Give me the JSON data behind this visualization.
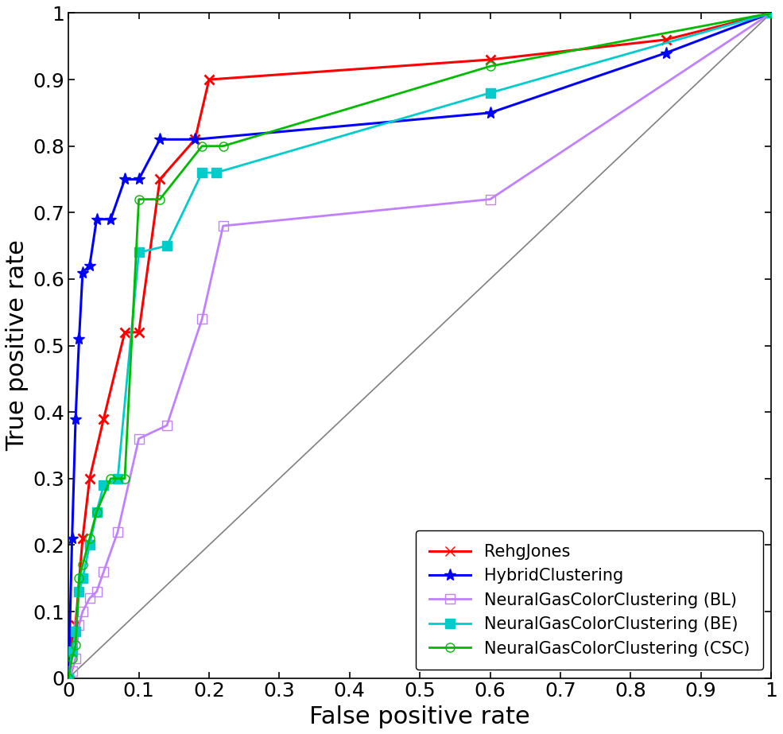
{
  "title": "",
  "xlabel": "False positive rate",
  "ylabel": "True positive rate",
  "xlim": [
    0,
    1
  ],
  "ylim": [
    0,
    1
  ],
  "diagonal_color": "#808080",
  "background_color": "#ffffff",
  "curves": {
    "RehgJones": {
      "x": [
        0.0,
        0.005,
        0.01,
        0.02,
        0.03,
        0.05,
        0.08,
        0.1,
        0.13,
        0.18,
        0.2,
        0.6,
        0.85,
        1.0
      ],
      "y": [
        0.0,
        0.06,
        0.08,
        0.21,
        0.3,
        0.39,
        0.52,
        0.52,
        0.75,
        0.81,
        0.9,
        0.93,
        0.96,
        1.0
      ],
      "color": "#ff0000",
      "marker": "x",
      "markersize": 9,
      "markeredgewidth": 2.0,
      "linewidth": 2.2,
      "label": "RehgJones"
    },
    "HybridClustering": {
      "x": [
        0.0,
        0.005,
        0.01,
        0.015,
        0.02,
        0.03,
        0.04,
        0.06,
        0.08,
        0.1,
        0.13,
        0.18,
        0.6,
        0.85,
        1.0
      ],
      "y": [
        0.0,
        0.21,
        0.39,
        0.51,
        0.61,
        0.62,
        0.69,
        0.69,
        0.75,
        0.75,
        0.81,
        0.81,
        0.85,
        0.94,
        1.0
      ],
      "color": "#0000ff",
      "marker": "*",
      "markersize": 11,
      "linewidth": 2.2,
      "label": "HybridClustering"
    },
    "NGCC_BL": {
      "x": [
        0.0,
        0.005,
        0.01,
        0.015,
        0.02,
        0.03,
        0.04,
        0.05,
        0.07,
        0.1,
        0.14,
        0.19,
        0.22,
        0.6,
        1.0
      ],
      "y": [
        0.0,
        0.01,
        0.03,
        0.08,
        0.1,
        0.12,
        0.13,
        0.16,
        0.22,
        0.36,
        0.38,
        0.54,
        0.68,
        0.72,
        1.0
      ],
      "color": "#c080ff",
      "marker": "s",
      "markersize": 8,
      "linewidth": 2.0,
      "label": "NeuralGasColorClustering (BL)",
      "markerfacecolor": "none"
    },
    "NGCC_BE": {
      "x": [
        0.0,
        0.005,
        0.01,
        0.015,
        0.02,
        0.03,
        0.04,
        0.05,
        0.07,
        0.1,
        0.14,
        0.19,
        0.21,
        0.6,
        1.0
      ],
      "y": [
        0.0,
        0.04,
        0.07,
        0.13,
        0.15,
        0.2,
        0.25,
        0.29,
        0.3,
        0.64,
        0.65,
        0.76,
        0.76,
        0.88,
        1.0
      ],
      "color": "#00cccc",
      "marker": "s",
      "markersize": 9,
      "linewidth": 2.0,
      "label": "NeuralGasColorClustering (BE)"
    },
    "NGCC_CSC": {
      "x": [
        0.0,
        0.005,
        0.01,
        0.015,
        0.02,
        0.03,
        0.04,
        0.06,
        0.08,
        0.1,
        0.13,
        0.19,
        0.22,
        0.6,
        1.0
      ],
      "y": [
        0.0,
        0.03,
        0.05,
        0.15,
        0.17,
        0.21,
        0.25,
        0.3,
        0.3,
        0.72,
        0.72,
        0.8,
        0.8,
        0.92,
        1.0
      ],
      "color": "#00bb00",
      "marker": "o",
      "markersize": 8,
      "linewidth": 2.0,
      "label": "NeuralGasColorClustering (CSC)",
      "markerfacecolor": "none"
    }
  },
  "tick_fontsize": 18,
  "label_fontsize": 22,
  "legend_fontsize": 15
}
